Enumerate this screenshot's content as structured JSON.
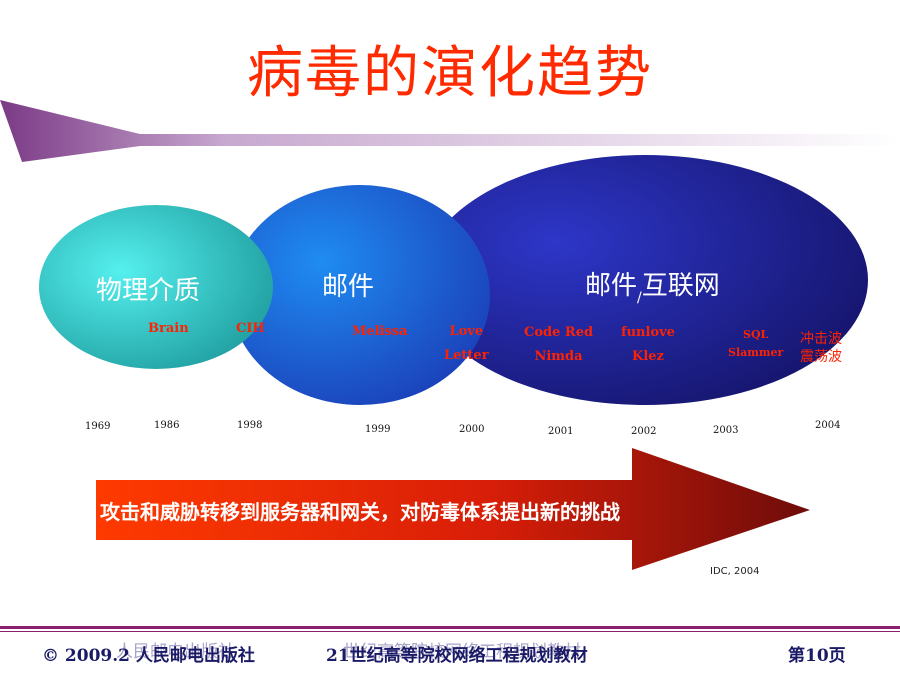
{
  "title": "病毒的演化趋势",
  "ovals": {
    "physical": "物理介质",
    "email": "邮件",
    "email_internet_a": "邮件",
    "email_internet_sub": "/",
    "email_internet_b": "互联网"
  },
  "viruses": {
    "brain": "Brain",
    "cih": "CIH",
    "melissa": "Melissa",
    "love_letter": [
      "Love",
      "Letter"
    ],
    "code_red_nimda": [
      "Code Red",
      "Nimda"
    ],
    "funlove_klez": [
      "funlove",
      "Klez"
    ],
    "sql_slammer": [
      "SQL",
      "Slammer"
    ],
    "shockwave": [
      "冲击波",
      "震荡波"
    ]
  },
  "years": [
    "1969",
    "1986",
    "1998",
    "1999",
    "2000",
    "2001",
    "2002",
    "2003",
    "2004"
  ],
  "arrow_text": "攻击和威胁转移到服务器和网关，对防毒体系提出新的挑战",
  "source": "IDC, 2004",
  "footer": {
    "left": "© 2009.2 人民邮电出版社",
    "center": "21世纪高等院校网络工程规划教材",
    "right": "第10页",
    "ghost_left": "人民邮电出版社",
    "ghost_center": "世纪高等院校网络工程规划教材"
  },
  "colors": {
    "title": "#ff2a00",
    "cyan_oval": "#3fd4d6",
    "blue_oval": "#1f55d9",
    "navy_oval": "#18187a",
    "arrow_start": "#ff3300",
    "arrow_end": "#7a0d08",
    "footer_rule": "#8b1e6e"
  }
}
